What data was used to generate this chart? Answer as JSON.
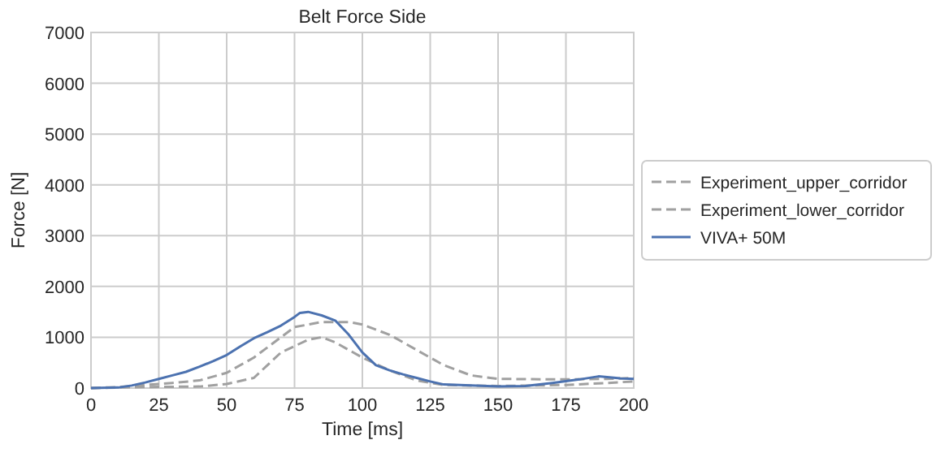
{
  "chart_data": {
    "type": "line",
    "title": "Belt Force Side",
    "xlabel": "Time [ms]",
    "ylabel": "Force [N]",
    "xlim": [
      0,
      200
    ],
    "xticks": [
      0,
      25,
      50,
      75,
      100,
      125,
      150,
      175,
      200
    ],
    "ylim": [
      0,
      7000
    ],
    "yticks": [
      0,
      1000,
      2000,
      3000,
      4000,
      5000,
      6000,
      7000
    ],
    "grid": true,
    "legend": "right",
    "series": [
      {
        "name": "Experiment_upper_corridor",
        "color": "#a0a0a0",
        "line_style": "dashed",
        "x": [
          0,
          10,
          20,
          30,
          40,
          50,
          60,
          70,
          75,
          85,
          95,
          100,
          110,
          120,
          130,
          140,
          150,
          175,
          190,
          200
        ],
        "values": [
          0,
          20,
          60,
          100,
          150,
          300,
          600,
          1000,
          1200,
          1300,
          1300,
          1250,
          1050,
          750,
          450,
          250,
          180,
          170,
          180,
          200
        ]
      },
      {
        "name": "Experiment_lower_corridor",
        "color": "#a0a0a0",
        "line_style": "dashed",
        "x": [
          0,
          20,
          40,
          50,
          60,
          65,
          70,
          80,
          85,
          90,
          100,
          110,
          120,
          130,
          150,
          175,
          190,
          200
        ],
        "values": [
          0,
          20,
          30,
          80,
          200,
          450,
          700,
          950,
          1000,
          900,
          600,
          350,
          150,
          60,
          40,
          60,
          100,
          130
        ]
      },
      {
        "name": "VIVA+ 50M",
        "color": "#4c72b0",
        "line_style": "solid",
        "x": [
          0,
          10,
          15,
          20,
          25,
          30,
          35,
          40,
          45,
          50,
          55,
          60,
          65,
          70,
          75,
          77,
          80,
          85,
          90,
          95,
          100,
          105,
          110,
          115,
          120,
          125,
          130,
          140,
          150,
          160,
          170,
          180,
          187,
          195,
          200
        ],
        "values": [
          0,
          10,
          50,
          110,
          180,
          250,
          320,
          420,
          530,
          650,
          820,
          980,
          1100,
          1230,
          1400,
          1480,
          1500,
          1430,
          1330,
          1050,
          700,
          450,
          350,
          270,
          200,
          130,
          70,
          50,
          30,
          40,
          100,
          170,
          230,
          190,
          180
        ]
      }
    ]
  }
}
